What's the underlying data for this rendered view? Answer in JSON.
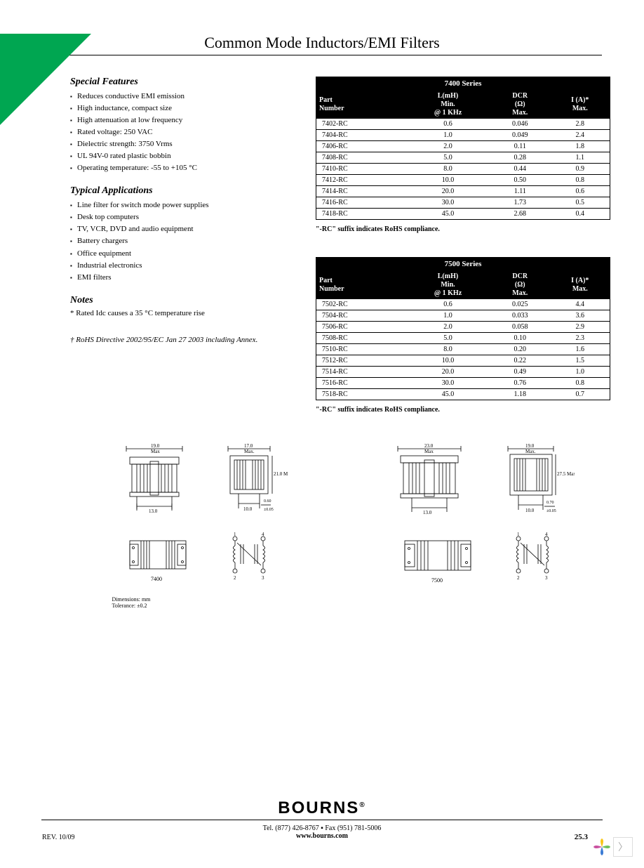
{
  "title": "Common Mode Inductors/EMI Filters",
  "sections": {
    "features": {
      "heading": "Special Features",
      "items": [
        "Reduces conductive EMI emission",
        "High inductance, compact size",
        "High attenuation at low frequency",
        "Rated voltage: 250 VAC",
        "Dielectric strength: 3750 Vrms",
        "UL 94V-0 rated plastic bobbin",
        "Operating temperature: -55 to +105 °C"
      ]
    },
    "applications": {
      "heading": "Typical Applications",
      "items": [
        "Line filter for switch mode power supplies",
        "Desk top computers",
        "TV, VCR, DVD and audio equipment",
        "Battery chargers",
        "Office equipment",
        "Industrial electronics",
        "EMI filters"
      ]
    },
    "notes": {
      "heading": "Notes",
      "text": "* Rated Idc causes a 35 °C temperature rise"
    },
    "rohs": "† RoHS Directive 2002/95/EC Jan 27 2003 including Annex."
  },
  "tables": {
    "headers": {
      "part": "Part Number",
      "l": "L(mH) Min. @ 1 KHz",
      "dcr": "DCR (Ω) Max.",
      "i": "I (A)* Max."
    },
    "series7400": {
      "title": "7400 Series",
      "rows": [
        [
          "7402-RC",
          "0.6",
          "0.046",
          "2.8"
        ],
        [
          "7404-RC",
          "1.0",
          "0.049",
          "2.4"
        ],
        [
          "7406-RC",
          "2.0",
          "0.11",
          "1.8"
        ],
        [
          "7408-RC",
          "5.0",
          "0.28",
          "1.1"
        ],
        [
          "7410-RC",
          "8.0",
          "0.44",
          "0.9"
        ],
        [
          "7412-RC",
          "10.0",
          "0.50",
          "0.8"
        ],
        [
          "7414-RC",
          "20.0",
          "1.11",
          "0.6"
        ],
        [
          "7416-RC",
          "30.0",
          "1.73",
          "0.5"
        ],
        [
          "7418-RC",
          "45.0",
          "2.68",
          "0.4"
        ]
      ]
    },
    "series7500": {
      "title": "7500 Series",
      "rows": [
        [
          "7502-RC",
          "0.6",
          "0.025",
          "4.4"
        ],
        [
          "7504-RC",
          "1.0",
          "0.033",
          "3.6"
        ],
        [
          "7506-RC",
          "2.0",
          "0.058",
          "2.9"
        ],
        [
          "7508-RC",
          "5.0",
          "0.10",
          "2.3"
        ],
        [
          "7510-RC",
          "8.0",
          "0.20",
          "1.6"
        ],
        [
          "7512-RC",
          "10.0",
          "0.22",
          "1.5"
        ],
        [
          "7514-RC",
          "20.0",
          "0.49",
          "1.0"
        ],
        [
          "7516-RC",
          "30.0",
          "0.76",
          "0.8"
        ],
        [
          "7518-RC",
          "45.0",
          "1.18",
          "0.7"
        ]
      ]
    },
    "note": "\"-RC\" suffix indicates RoHS compliance."
  },
  "diagrams": {
    "dims_7400": {
      "w": "19.0",
      "d": "17.0",
      "h": "21.0 Max",
      "lead1": "13.0",
      "lead2": "10.0",
      "pin": "0.60 ±0.05"
    },
    "dims_7500": {
      "w": "23.0",
      "d": "19.0",
      "h": "27.5 Max",
      "lead1": "13.0",
      "lead2": "10.0",
      "pin": "0.70 ±0.05"
    },
    "label1": "7400",
    "label2": "7500",
    "dim_note": "Dimensions: mm\nTolerance: ±0.2"
  },
  "footer": {
    "brand": "BOURNS",
    "tel": "Tel. (877) 426-8767 ▪ Fax (951) 781-5006",
    "web": "www.bourns.com",
    "rev": "REV. 10/09",
    "page": "25.3"
  },
  "colors": {
    "accent": "#00a651",
    "header_bg": "#000000",
    "header_fg": "#ffffff",
    "text": "#000000",
    "bg": "#ffffff",
    "petal_colors": [
      "#f9c616",
      "#70c15c",
      "#3a7bd5",
      "#c94f9f"
    ]
  }
}
